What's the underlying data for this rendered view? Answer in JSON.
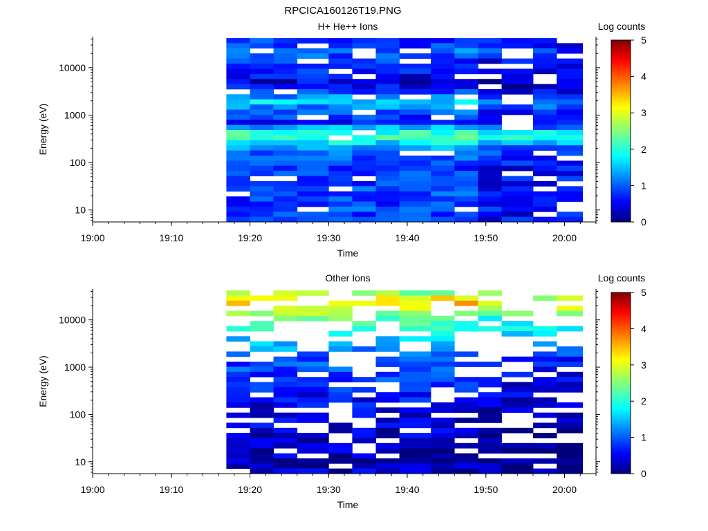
{
  "figure": {
    "title": "RPCICA160126T19.PNG"
  },
  "chart_data": [
    {
      "type": "heatmap",
      "title": "H+ He++ Ions",
      "xlabel": "Time",
      "ylabel": "Energy (eV)",
      "y_scale": "log",
      "xlim": [
        "19:00",
        "20:04"
      ],
      "ylim": [
        5.6,
        45000
      ],
      "x_ticks": [
        "19:00",
        "19:10",
        "19:20",
        "19:30",
        "19:40",
        "19:50",
        "20:00"
      ],
      "y_ticks": [
        "10",
        "100",
        "1000",
        "10000"
      ],
      "colorbar": {
        "label": "Log counts",
        "range": [
          0,
          5
        ],
        "ticks": [
          "0",
          "1",
          "2",
          "3",
          "4",
          "5"
        ]
      },
      "colormap": [
        "#00007f",
        "#0000ff",
        "#00ffff",
        "#ffff00",
        "#ff0000",
        "#7f0000"
      ],
      "data_start_time": "19:17",
      "time_bins": [
        "19:17",
        "19:20",
        "19:23",
        "19:26",
        "19:30",
        "19:33",
        "19:36",
        "19:39",
        "19:43",
        "19:46",
        "19:49",
        "19:52",
        "19:56",
        "19:59"
      ],
      "profile": [
        0.85,
        0.75,
        1.1,
        0.9,
        0.8,
        0.75,
        0.7,
        0.55,
        0.45,
        0.6,
        0.8,
        1.2,
        1.6,
        1.2,
        1.0,
        0.8,
        0.7,
        1.4,
        2.0,
        2.1,
        1.7,
        1.3,
        1.1,
        1.0,
        0.9,
        0.8,
        0.9,
        0.85,
        0.8,
        0.9,
        0.9,
        0.8,
        0.85,
        0.9,
        0.8,
        0.85
      ],
      "white_fraction": 0.07
    },
    {
      "type": "heatmap",
      "title": "Other Ions",
      "xlabel": "Time",
      "ylabel": "Energy (eV)",
      "y_scale": "log",
      "xlim": [
        "19:00",
        "20:04"
      ],
      "ylim": [
        5.6,
        45000
      ],
      "x_ticks": [
        "19:00",
        "19:10",
        "19:20",
        "19:30",
        "19:40",
        "19:50",
        "20:00"
      ],
      "y_ticks": [
        "10",
        "100",
        "1000",
        "10000"
      ],
      "colorbar": {
        "label": "Log counts",
        "range": [
          0,
          5
        ],
        "ticks": [
          "0",
          "1",
          "2",
          "3",
          "4",
          "5"
        ]
      },
      "colormap": [
        "#00007f",
        "#0000ff",
        "#00ffff",
        "#ffff00",
        "#ff0000",
        "#7f0000"
      ],
      "data_start_time": "19:17",
      "time_bins": [
        "19:17",
        "19:20",
        "19:23",
        "19:26",
        "19:30",
        "19:33",
        "19:36",
        "19:39",
        "19:43",
        "19:46",
        "19:49",
        "19:52",
        "19:56",
        "19:59"
      ],
      "profile": [
        2.6,
        3.1,
        3.4,
        3.0,
        2.6,
        2.3,
        2.1,
        1.9,
        1.7,
        1.6,
        1.4,
        1.3,
        1.1,
        1.0,
        0.9,
        0.9,
        0.8,
        0.8,
        0.7,
        0.7,
        0.6,
        0.6,
        0.5,
        0.5,
        0.5,
        0.4,
        0.4,
        0.35,
        0.35,
        0.3,
        0.3,
        0.3,
        0.3,
        0.3,
        0.3,
        0.3
      ],
      "white_fraction": 0.3
    }
  ]
}
